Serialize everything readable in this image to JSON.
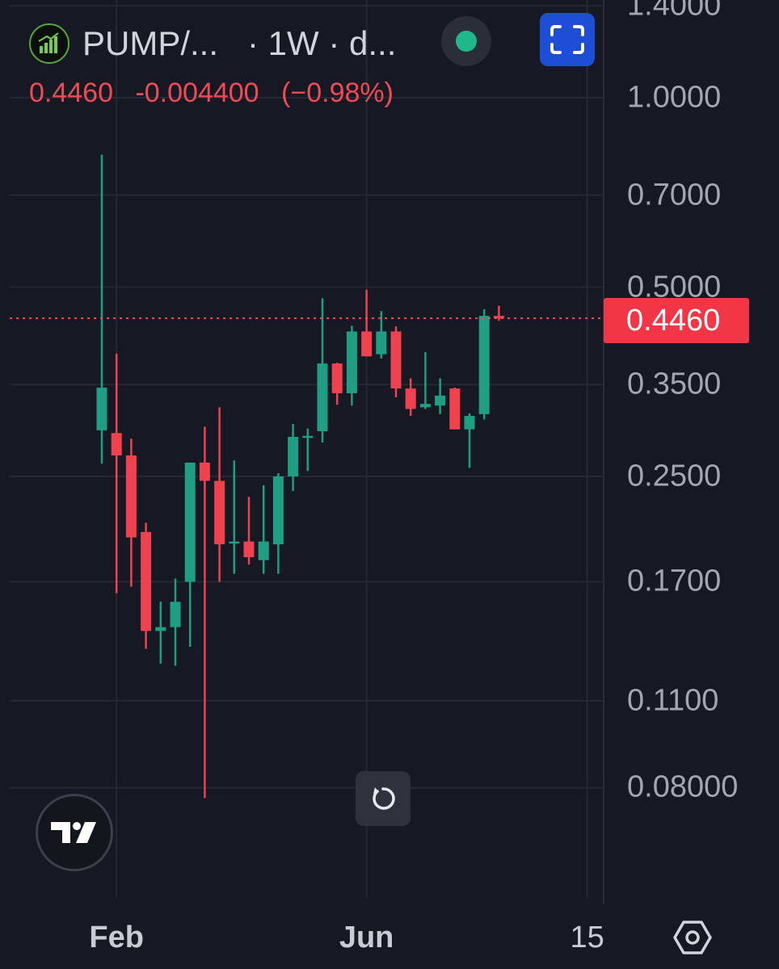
{
  "header": {
    "symbol": "PUMP/...",
    "meta": "· 1W · d...",
    "last_price": "0.4460",
    "change": "-0.004400",
    "change_pct": "(−0.98%)"
  },
  "price_tag": "0.4460",
  "colors": {
    "up": "#1e9e82",
    "down": "#f0414f",
    "background": "#161923",
    "accent": "#1f4ed6"
  },
  "icons": {
    "logo": "pump-logo-icon",
    "status": "status-dot-icon",
    "expand": "fullscreen-icon",
    "reset": "reset-icon",
    "brand": "tradingview-logo-icon",
    "settings": "settings-icon"
  },
  "chart_data": {
    "type": "candlestick",
    "scale": "log",
    "interval": "1W",
    "y_ticks": [
      "1.4000",
      "1.0000",
      "0.7000",
      "0.5000",
      "0.3500",
      "0.2500",
      "0.1700",
      "0.1100",
      "0.08000"
    ],
    "x_ticks": [
      {
        "label": "Feb",
        "index": 1
      },
      {
        "label": "Jun",
        "index": 18
      },
      {
        "label": "15",
        "index": 33
      }
    ],
    "current_price": 0.446,
    "candles": [
      {
        "o": 0.296,
        "h": 0.812,
        "l": 0.262,
        "c": 0.346
      },
      {
        "o": 0.293,
        "h": 0.392,
        "l": 0.163,
        "c": 0.27
      },
      {
        "o": 0.27,
        "h": 0.287,
        "l": 0.167,
        "c": 0.2
      },
      {
        "o": 0.204,
        "h": 0.211,
        "l": 0.133,
        "c": 0.142
      },
      {
        "o": 0.142,
        "h": 0.158,
        "l": 0.126,
        "c": 0.144
      },
      {
        "o": 0.144,
        "h": 0.172,
        "l": 0.125,
        "c": 0.158
      },
      {
        "o": 0.17,
        "h": 0.263,
        "l": 0.134,
        "c": 0.263
      },
      {
        "o": 0.263,
        "h": 0.3,
        "l": 0.077,
        "c": 0.246
      },
      {
        "o": 0.246,
        "h": 0.322,
        "l": 0.17,
        "c": 0.195
      },
      {
        "o": 0.196,
        "h": 0.265,
        "l": 0.175,
        "c": 0.197
      },
      {
        "o": 0.197,
        "h": 0.232,
        "l": 0.181,
        "c": 0.186
      },
      {
        "o": 0.184,
        "h": 0.242,
        "l": 0.175,
        "c": 0.197
      },
      {
        "o": 0.195,
        "h": 0.253,
        "l": 0.175,
        "c": 0.25
      },
      {
        "o": 0.25,
        "h": 0.303,
        "l": 0.237,
        "c": 0.289
      },
      {
        "o": 0.29,
        "h": 0.298,
        "l": 0.255,
        "c": 0.29
      },
      {
        "o": 0.295,
        "h": 0.48,
        "l": 0.283,
        "c": 0.378
      },
      {
        "o": 0.378,
        "h": 0.379,
        "l": 0.325,
        "c": 0.339
      },
      {
        "o": 0.339,
        "h": 0.434,
        "l": 0.324,
        "c": 0.425
      },
      {
        "o": 0.425,
        "h": 0.495,
        "l": 0.388,
        "c": 0.388
      },
      {
        "o": 0.391,
        "h": 0.458,
        "l": 0.385,
        "c": 0.425
      },
      {
        "o": 0.425,
        "h": 0.433,
        "l": 0.334,
        "c": 0.345
      },
      {
        "o": 0.345,
        "h": 0.358,
        "l": 0.312,
        "c": 0.32
      },
      {
        "o": 0.322,
        "h": 0.394,
        "l": 0.32,
        "c": 0.326
      },
      {
        "o": 0.324,
        "h": 0.358,
        "l": 0.314,
        "c": 0.336
      },
      {
        "o": 0.345,
        "h": 0.346,
        "l": 0.297,
        "c": 0.297
      },
      {
        "o": 0.297,
        "h": 0.315,
        "l": 0.258,
        "c": 0.312
      },
      {
        "o": 0.314,
        "h": 0.461,
        "l": 0.308,
        "c": 0.45
      },
      {
        "o": 0.45,
        "h": 0.467,
        "l": 0.442,
        "c": 0.446
      }
    ]
  }
}
